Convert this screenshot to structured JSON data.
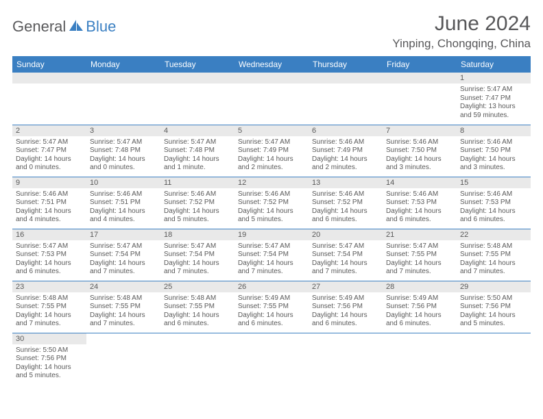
{
  "logo": {
    "part1": "General",
    "part2": "Blue"
  },
  "title": "June 2024",
  "location": "Yinping, Chongqing, China",
  "colors": {
    "header_bg": "#3a7fc2",
    "header_fg": "#ffffff",
    "daynum_bg": "#e9e9e9",
    "text": "#595959",
    "logo_gray": "#59595b",
    "logo_blue": "#3a7fc2",
    "page_bg": "#ffffff"
  },
  "day_headers": [
    "Sunday",
    "Monday",
    "Tuesday",
    "Wednesday",
    "Thursday",
    "Friday",
    "Saturday"
  ],
  "weeks": [
    [
      null,
      null,
      null,
      null,
      null,
      null,
      {
        "n": "1",
        "sr": "5:47 AM",
        "ss": "7:47 PM",
        "dl": "13 hours and 59 minutes."
      }
    ],
    [
      {
        "n": "2",
        "sr": "5:47 AM",
        "ss": "7:47 PM",
        "dl": "14 hours and 0 minutes."
      },
      {
        "n": "3",
        "sr": "5:47 AM",
        "ss": "7:48 PM",
        "dl": "14 hours and 0 minutes."
      },
      {
        "n": "4",
        "sr": "5:47 AM",
        "ss": "7:48 PM",
        "dl": "14 hours and 1 minute."
      },
      {
        "n": "5",
        "sr": "5:47 AM",
        "ss": "7:49 PM",
        "dl": "14 hours and 2 minutes."
      },
      {
        "n": "6",
        "sr": "5:46 AM",
        "ss": "7:49 PM",
        "dl": "14 hours and 2 minutes."
      },
      {
        "n": "7",
        "sr": "5:46 AM",
        "ss": "7:50 PM",
        "dl": "14 hours and 3 minutes."
      },
      {
        "n": "8",
        "sr": "5:46 AM",
        "ss": "7:50 PM",
        "dl": "14 hours and 3 minutes."
      }
    ],
    [
      {
        "n": "9",
        "sr": "5:46 AM",
        "ss": "7:51 PM",
        "dl": "14 hours and 4 minutes."
      },
      {
        "n": "10",
        "sr": "5:46 AM",
        "ss": "7:51 PM",
        "dl": "14 hours and 4 minutes."
      },
      {
        "n": "11",
        "sr": "5:46 AM",
        "ss": "7:52 PM",
        "dl": "14 hours and 5 minutes."
      },
      {
        "n": "12",
        "sr": "5:46 AM",
        "ss": "7:52 PM",
        "dl": "14 hours and 5 minutes."
      },
      {
        "n": "13",
        "sr": "5:46 AM",
        "ss": "7:52 PM",
        "dl": "14 hours and 6 minutes."
      },
      {
        "n": "14",
        "sr": "5:46 AM",
        "ss": "7:53 PM",
        "dl": "14 hours and 6 minutes."
      },
      {
        "n": "15",
        "sr": "5:46 AM",
        "ss": "7:53 PM",
        "dl": "14 hours and 6 minutes."
      }
    ],
    [
      {
        "n": "16",
        "sr": "5:47 AM",
        "ss": "7:53 PM",
        "dl": "14 hours and 6 minutes."
      },
      {
        "n": "17",
        "sr": "5:47 AM",
        "ss": "7:54 PM",
        "dl": "14 hours and 7 minutes."
      },
      {
        "n": "18",
        "sr": "5:47 AM",
        "ss": "7:54 PM",
        "dl": "14 hours and 7 minutes."
      },
      {
        "n": "19",
        "sr": "5:47 AM",
        "ss": "7:54 PM",
        "dl": "14 hours and 7 minutes."
      },
      {
        "n": "20",
        "sr": "5:47 AM",
        "ss": "7:54 PM",
        "dl": "14 hours and 7 minutes."
      },
      {
        "n": "21",
        "sr": "5:47 AM",
        "ss": "7:55 PM",
        "dl": "14 hours and 7 minutes."
      },
      {
        "n": "22",
        "sr": "5:48 AM",
        "ss": "7:55 PM",
        "dl": "14 hours and 7 minutes."
      }
    ],
    [
      {
        "n": "23",
        "sr": "5:48 AM",
        "ss": "7:55 PM",
        "dl": "14 hours and 7 minutes."
      },
      {
        "n": "24",
        "sr": "5:48 AM",
        "ss": "7:55 PM",
        "dl": "14 hours and 7 minutes."
      },
      {
        "n": "25",
        "sr": "5:48 AM",
        "ss": "7:55 PM",
        "dl": "14 hours and 6 minutes."
      },
      {
        "n": "26",
        "sr": "5:49 AM",
        "ss": "7:55 PM",
        "dl": "14 hours and 6 minutes."
      },
      {
        "n": "27",
        "sr": "5:49 AM",
        "ss": "7:56 PM",
        "dl": "14 hours and 6 minutes."
      },
      {
        "n": "28",
        "sr": "5:49 AM",
        "ss": "7:56 PM",
        "dl": "14 hours and 6 minutes."
      },
      {
        "n": "29",
        "sr": "5:50 AM",
        "ss": "7:56 PM",
        "dl": "14 hours and 5 minutes."
      }
    ],
    [
      {
        "n": "30",
        "sr": "5:50 AM",
        "ss": "7:56 PM",
        "dl": "14 hours and 5 minutes."
      },
      null,
      null,
      null,
      null,
      null,
      null
    ]
  ],
  "labels": {
    "sunrise": "Sunrise: ",
    "sunset": "Sunset: ",
    "daylight": "Daylight: "
  }
}
